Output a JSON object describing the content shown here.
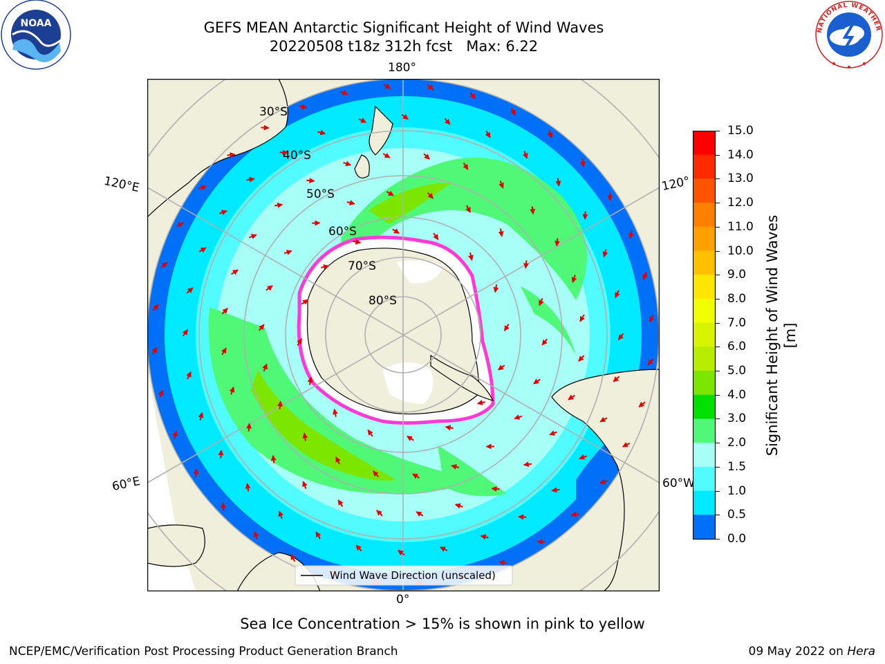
{
  "header": {
    "title": "GEFS MEAN Antarctic Significant Height of Wind Waves",
    "subtitle": "20220508 t18z 312h fcst   Max: 6.22"
  },
  "map": {
    "projection": "south-polar-stereographic",
    "lon_labels": {
      "top": "180°",
      "bottom": "0°",
      "left_upper": "120°E",
      "left_lower": "60°E",
      "right_upper": "120°",
      "right_lower": "60°W"
    },
    "lat_labels": [
      "30°S",
      "40°S",
      "50°S",
      "60°S",
      "70°S",
      "80°S"
    ],
    "legend": {
      "label": "Wind Wave Direction (unscaled)"
    }
  },
  "colorbar": {
    "label": "Significant Height of Wind Waves [m]",
    "ticks": [
      "15.0",
      "14.0",
      "13.0",
      "12.0",
      "11.0",
      "10.0",
      "9.0",
      "8.0",
      "7.0",
      "6.0",
      "5.0",
      "4.0",
      "3.0",
      "2.0",
      "1.5",
      "1.0",
      "0.5",
      "0.0"
    ],
    "colors_top_to_bottom": [
      "#ff0000",
      "#ff2a00",
      "#ff5500",
      "#ff8000",
      "#ffa000",
      "#ffc000",
      "#ffe600",
      "#f0ff00",
      "#d8f400",
      "#b8ec00",
      "#7ce600",
      "#00e000",
      "#50f878",
      "#a8fff8",
      "#50fcff",
      "#00eaff",
      "#0070f8",
      "#0000ff"
    ]
  },
  "footer": {
    "note": "Sea Ice Concentration > 15% is shown in pink to yellow",
    "credit": "NCEP/EMC/Verification Post Processing Product Generation Branch",
    "date": "09 May 2022 on",
    "machine": "Hera"
  },
  "logos": {
    "left": "NOAA",
    "right": "NATIONAL WEATHER SERVICE"
  }
}
